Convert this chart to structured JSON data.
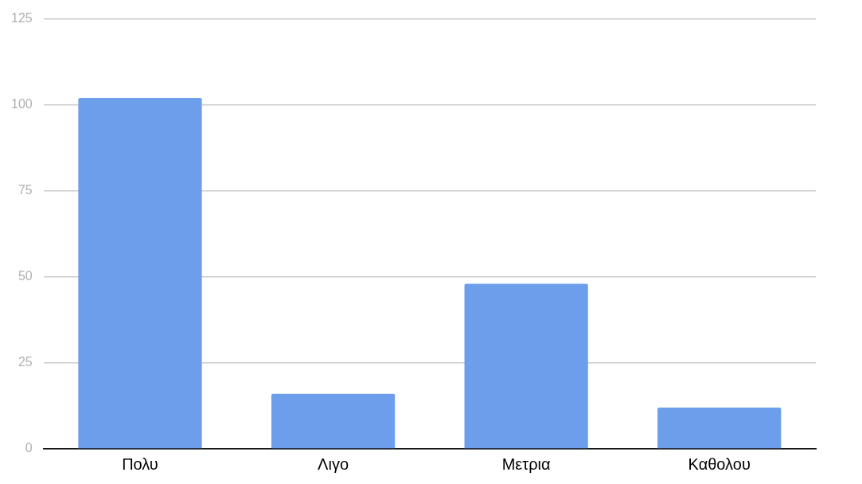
{
  "chart_data": {
    "type": "bar",
    "categories": [
      "Πολυ",
      "Λιγο",
      "Μετρια",
      "Καθολου"
    ],
    "series": [
      {
        "color": "#6d9eeb",
        "values": [
          102,
          16,
          48,
          12
        ]
      }
    ],
    "ylim": [
      0,
      125
    ],
    "yticks": [
      0,
      25,
      50,
      75,
      100,
      125
    ],
    "grid": "y",
    "legend": false
  }
}
